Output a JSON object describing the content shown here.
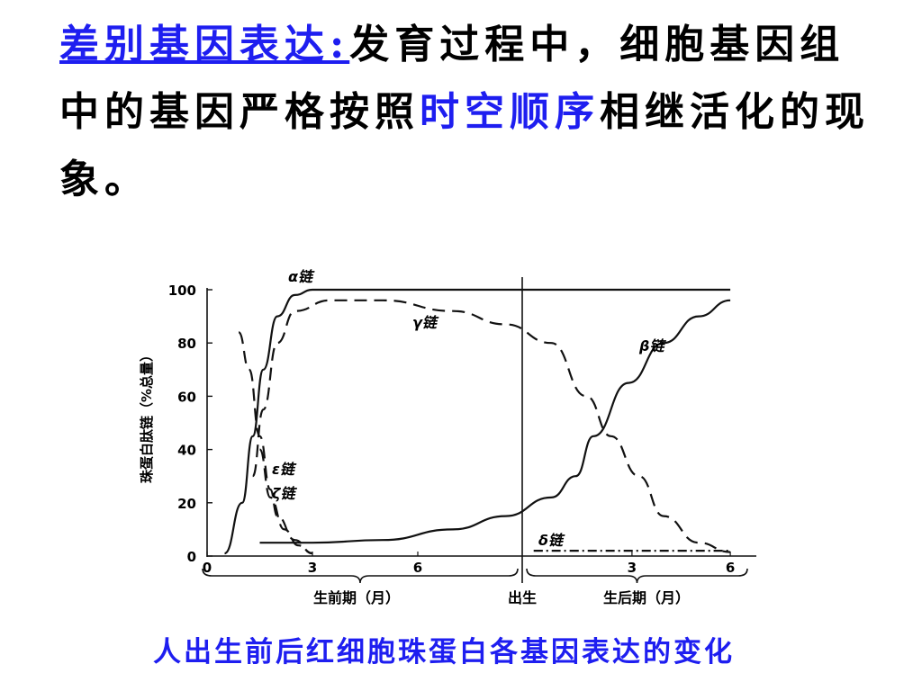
{
  "slide": {
    "term": "差别基因表达:",
    "text_a": "发育过程中，细胞基因组中的基因严格按照",
    "highlight": "时空顺序",
    "text_b": "相继活化的现象。",
    "caption": "人出生前后红细胞珠蛋白各基因表达的变化"
  },
  "chart_data": {
    "type": "line",
    "ylabel": "珠蛋白肽链（%总量）",
    "ylim": [
      0,
      100
    ],
    "yticks": [
      0,
      20,
      40,
      60,
      80,
      100
    ],
    "prenatal_ticks": [
      "0",
      "3",
      "6"
    ],
    "postnatal_ticks": [
      "3",
      "6"
    ],
    "prenatal_label": "生前期（月）",
    "birth_label": "出生",
    "postnatal_label": "生后期（月）",
    "grid": false,
    "colors": {
      "line": "#111111",
      "text": "#000000",
      "accent": "#1e1ef0"
    },
    "series": [
      {
        "name": "α链",
        "style": "solid",
        "points": [
          [
            0.5,
            1
          ],
          [
            1,
            20
          ],
          [
            1.3,
            45
          ],
          [
            1.6,
            70
          ],
          [
            2,
            90
          ],
          [
            2.5,
            98
          ],
          [
            3,
            100
          ],
          [
            5,
            100
          ],
          [
            7.8,
            100
          ],
          [
            9.8,
            100
          ],
          [
            14.9,
            100
          ]
        ]
      },
      {
        "name": "γ链",
        "style": "dashed",
        "points": [
          [
            1.3,
            30
          ],
          [
            1.6,
            55
          ],
          [
            2,
            80
          ],
          [
            2.5,
            92
          ],
          [
            3.5,
            96
          ],
          [
            5,
            96
          ],
          [
            7,
            92
          ],
          [
            8.5,
            87
          ],
          [
            9.8,
            80
          ],
          [
            10.8,
            60
          ],
          [
            11.5,
            45
          ],
          [
            12.3,
            30
          ],
          [
            13,
            15
          ],
          [
            14,
            5
          ],
          [
            14.9,
            1.5
          ]
        ]
      },
      {
        "name": "β链",
        "style": "solid",
        "points": [
          [
            1.5,
            5
          ],
          [
            3,
            5
          ],
          [
            5,
            6
          ],
          [
            7,
            10
          ],
          [
            8.5,
            15
          ],
          [
            9.8,
            22
          ],
          [
            10.5,
            30
          ],
          [
            11,
            45
          ],
          [
            12,
            65
          ],
          [
            13,
            80
          ],
          [
            14,
            90
          ],
          [
            14.9,
            96
          ]
        ]
      },
      {
        "name": "ε链",
        "style": "dashed",
        "points": [
          [
            0.9,
            84
          ],
          [
            1.2,
            70
          ],
          [
            1.5,
            45
          ],
          [
            1.8,
            25
          ],
          [
            2,
            15
          ],
          [
            2.5,
            6
          ],
          [
            3,
            1
          ]
        ]
      },
      {
        "name": "ζ链",
        "style": "dashed",
        "points": [
          [
            1.5,
            40
          ],
          [
            1.8,
            22
          ],
          [
            2.2,
            10
          ],
          [
            2.6,
            4
          ],
          [
            3,
            1
          ]
        ]
      },
      {
        "name": "δ链",
        "style": "dashdot",
        "points": [
          [
            9.3,
            2
          ],
          [
            10.5,
            2
          ],
          [
            12,
            2
          ],
          [
            13.5,
            2
          ],
          [
            14.9,
            2
          ]
        ]
      }
    ],
    "series_labels": [
      "α链",
      "γ链",
      "β链",
      "ε链",
      "ζ链",
      "δ链"
    ]
  }
}
